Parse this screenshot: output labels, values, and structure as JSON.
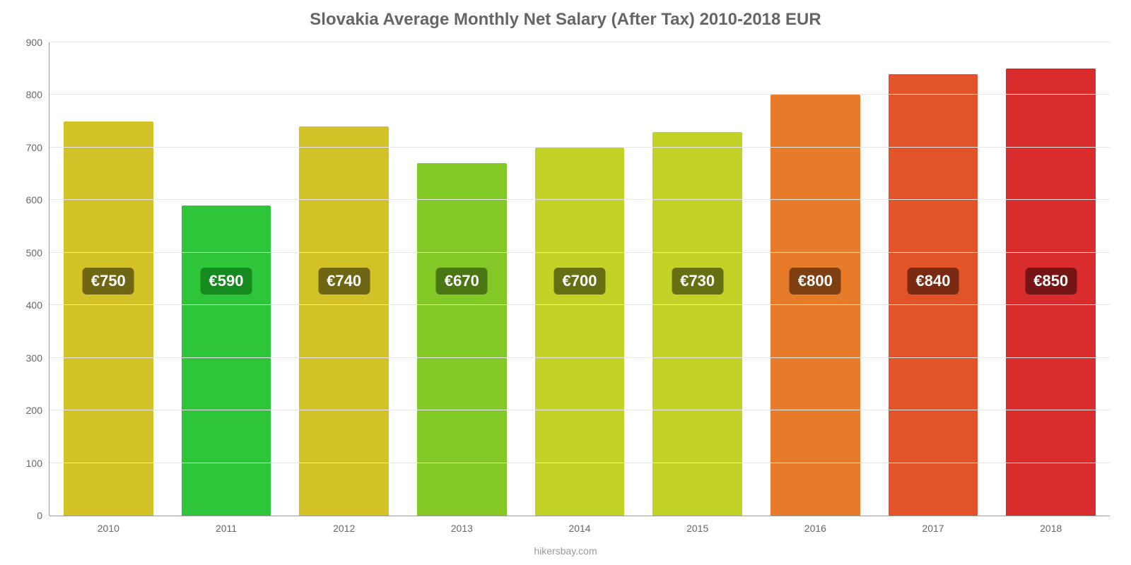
{
  "chart": {
    "type": "bar",
    "title": "Slovakia Average Monthly Net Salary (After Tax) 2010-2018 EUR",
    "title_fontsize": 24,
    "title_color": "#666666",
    "footer": "hikersbay.com",
    "footer_color": "#999999",
    "background_color": "#ffffff",
    "grid_color": "#e6e6e6",
    "axis_color": "#999999",
    "tick_label_color": "#666666",
    "tick_fontsize": 14,
    "ylim": [
      0,
      900
    ],
    "ytick_step": 100,
    "yticks": [
      0,
      100,
      200,
      300,
      400,
      500,
      600,
      700,
      800,
      900
    ],
    "bar_width_pct": 76,
    "value_currency_prefix": "€",
    "value_badge_fontsize": 22,
    "value_badge_text_color": "#ffffff",
    "value_badge_radius": 6,
    "categories": [
      "2010",
      "2011",
      "2012",
      "2013",
      "2014",
      "2015",
      "2016",
      "2017",
      "2018"
    ],
    "values": [
      750,
      590,
      740,
      670,
      700,
      730,
      800,
      840,
      850
    ],
    "value_labels": [
      "€750",
      "€590",
      "€740",
      "€670",
      "€700",
      "€730",
      "€800",
      "€840",
      "€850"
    ],
    "bar_colors": [
      "#d2c227",
      "#2fc53a",
      "#d2c227",
      "#82c827",
      "#c3d227",
      "#c3d227",
      "#e87b2a",
      "#e2532a",
      "#d92c2c"
    ],
    "badge_bg_colors": [
      "#6f6613",
      "#158a1f",
      "#6f6613",
      "#4b7614",
      "#676f13",
      "#676f13",
      "#7e3f13",
      "#7a2a13",
      "#751515"
    ],
    "badge_y_value": 420
  }
}
